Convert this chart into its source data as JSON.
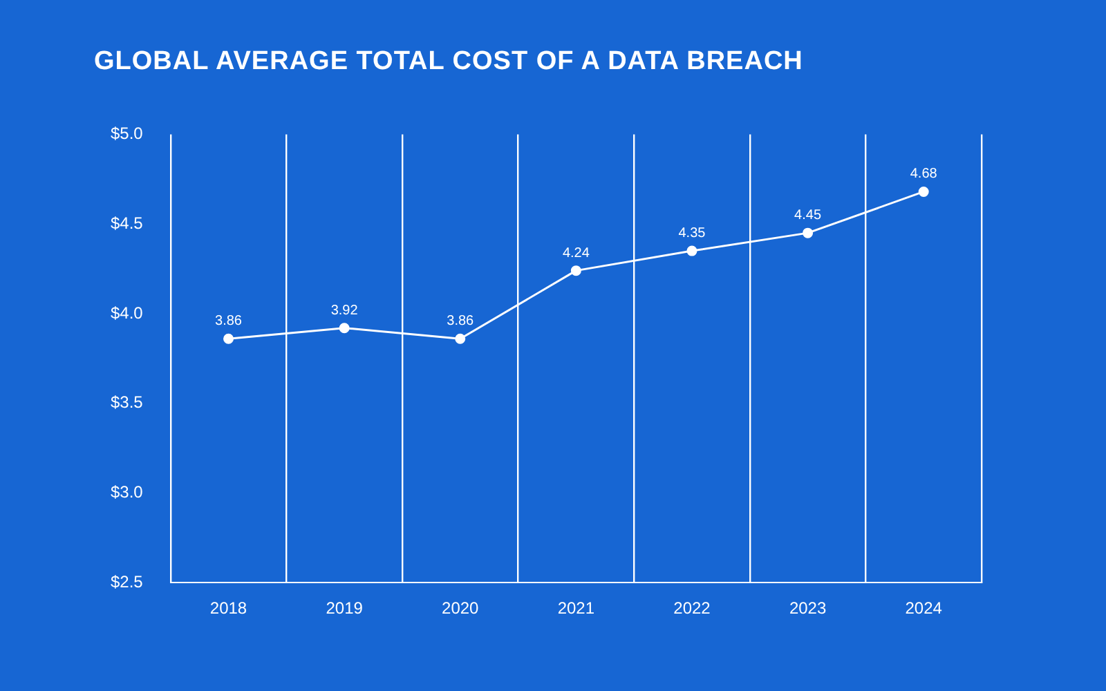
{
  "chart_data": {
    "type": "line",
    "title": "GLOBAL AVERAGE TOTAL COST OF A DATA BREACH",
    "categories": [
      "2018",
      "2019",
      "2020",
      "2021",
      "2022",
      "2023",
      "2024"
    ],
    "series": [
      {
        "color": "#ffffff",
        "values": [
          3.86,
          3.92,
          3.86,
          4.24,
          4.35,
          4.45,
          4.68
        ]
      }
    ],
    "ylim": [
      2.5,
      5.0
    ],
    "yticks": [
      {
        "value": 2.5,
        "label": "$2.5"
      },
      {
        "value": 3.0,
        "label": "$3.0"
      },
      {
        "value": 3.5,
        "label": "$3.5"
      },
      {
        "value": 4.0,
        "label": "$4.0"
      },
      {
        "value": 4.5,
        "label": "$4.5"
      },
      {
        "value": 5.0,
        "label": "$5.0"
      }
    ],
    "grid": "x",
    "marker": "circle",
    "line_style": "solid",
    "data_labels": true,
    "legend": false
  }
}
